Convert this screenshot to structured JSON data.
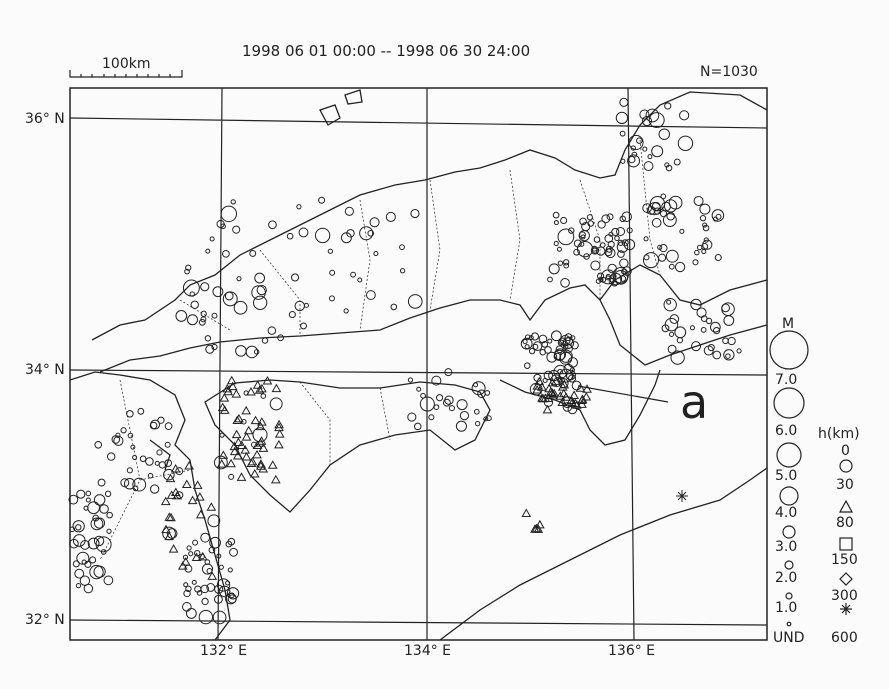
{
  "header": {
    "period": "1998 06 01 00:00 -- 1998 06 30 24:00",
    "count": "N=1030",
    "scale_label": "100km"
  },
  "axes": {
    "lat_labels": [
      "36° N",
      "34° N",
      "32° N"
    ],
    "lon_labels": [
      "132° E",
      "134° E",
      "136° E"
    ]
  },
  "annotation": {
    "label": "a"
  },
  "legend": {
    "magnitude_title": "M",
    "magnitudes": [
      "7.0",
      "6.0",
      "5.0",
      "4.0",
      "3.0",
      "2.0",
      "1.0",
      "UND"
    ],
    "depth_title": "h(km)",
    "depths": [
      "0",
      "30",
      "80",
      "150",
      "300",
      "600"
    ],
    "depth_symbols": [
      "circle",
      "triangle",
      "square",
      "diamond",
      "asterisk"
    ]
  },
  "colors": {
    "ink": "#222222",
    "background": "#fbfbfb"
  }
}
